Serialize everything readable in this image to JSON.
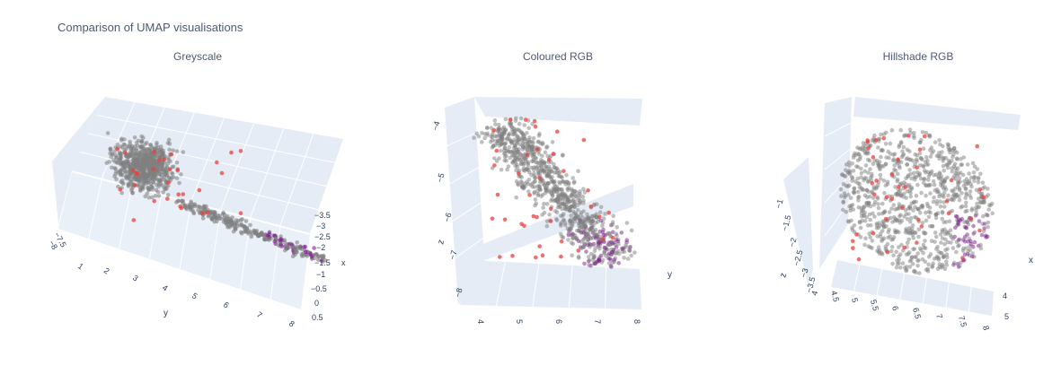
{
  "title": "Comparison of UMAP visualisations",
  "colors": {
    "grey": "#808080",
    "red": "#e8413c",
    "purple": "#7b1d8a",
    "plane": "#e5ecf6",
    "grid": "#ffffff"
  },
  "chart_data": [
    {
      "type": "scatter",
      "title": "Greyscale",
      "dimensions": 3,
      "axes": {
        "x": {
          "label": "x",
          "ticks": []
        },
        "y": {
          "label": "y",
          "ticks": [
            "1",
            "2",
            "3",
            "4",
            "5",
            "6",
            "7",
            "8"
          ]
        },
        "z": {
          "label": "",
          "ticks": [
            "−3.5",
            "−3",
            "−2.5",
            "−2",
            "−1.5",
            "−1",
            "−0.5",
            "0",
            "0.5"
          ]
        },
        "extra_ticks": [
          "−7.5",
          "−8"
        ]
      },
      "series": [
        {
          "values": "grey points — dense cloud y 1.5–4, thin arm to y≈8"
        },
        {
          "values": "red points scattered"
        },
        {
          "values": "purple points concentrated along arm y 6–8"
        }
      ]
    },
    {
      "type": "scatter",
      "title": "Coloured RGB",
      "dimensions": 3,
      "axes": {
        "x": {
          "label": "",
          "ticks": [
            "4",
            "5",
            "6",
            "7",
            "8"
          ]
        },
        "y": {
          "label": "y",
          "ticks": []
        },
        "z": {
          "label": "z",
          "ticks": [
            "−4",
            "−5",
            "−6",
            "−7",
            "−8"
          ]
        }
      }
    },
    {
      "type": "scatter",
      "title": "Hillshade RGB",
      "dimensions": 3,
      "axes": {
        "x": {
          "label": "x",
          "ticks": [
            "4",
            "5"
          ]
        },
        "y": {
          "label": "",
          "ticks": [
            "4.5",
            "5",
            "5.5",
            "6",
            "6.5",
            "7",
            "7.5",
            "8"
          ]
        },
        "z": {
          "label": "z",
          "ticks": [
            "−1",
            "−1.5",
            "−2",
            "−2.5",
            "−3",
            "−3.5",
            "4"
          ]
        }
      }
    }
  ]
}
